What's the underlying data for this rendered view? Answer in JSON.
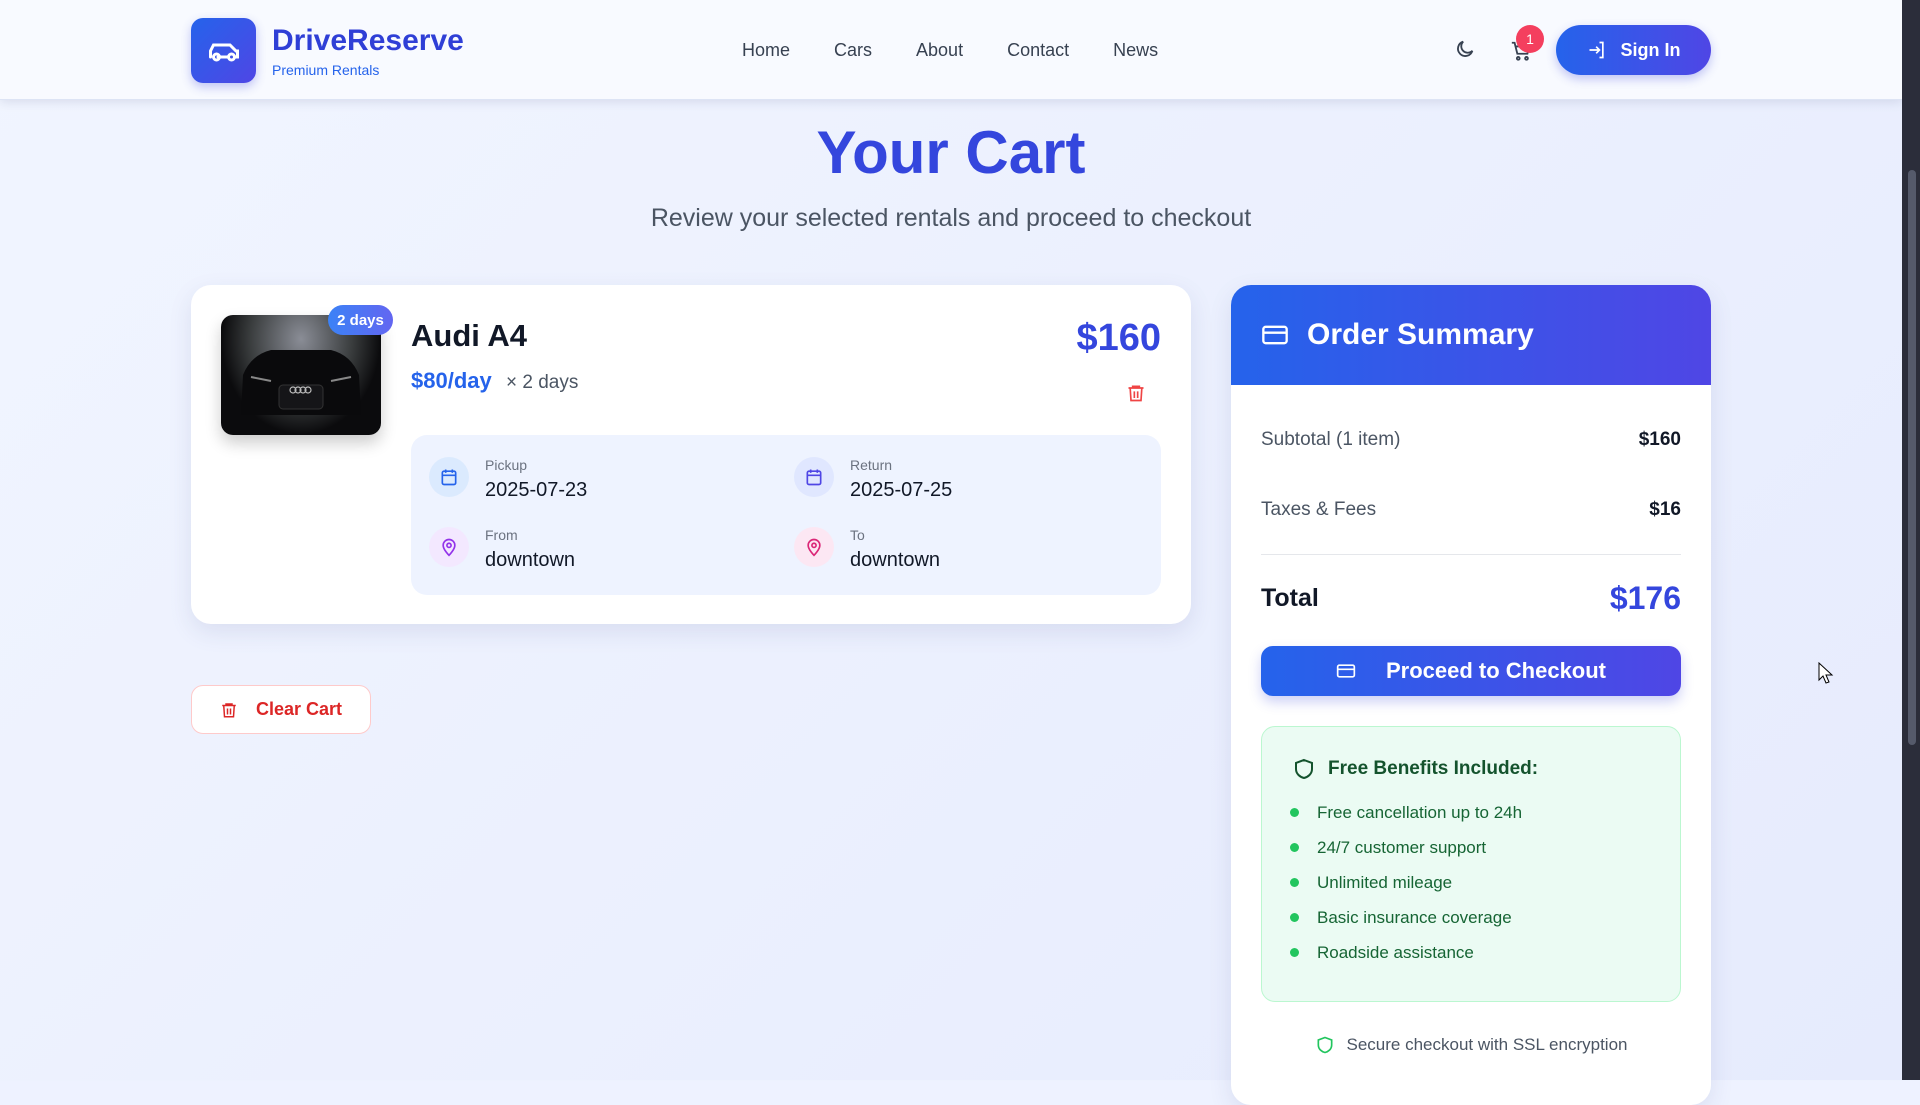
{
  "header": {
    "brand": "DriveReserve",
    "tagline": "Premium Rentals",
    "nav": [
      "Home",
      "Cars",
      "About",
      "Contact",
      "News"
    ],
    "cart_count": "1",
    "sign_in": "Sign In"
  },
  "page": {
    "title": "Your Cart",
    "subtitle": "Review your selected rentals and proceed to checkout"
  },
  "item": {
    "name": "Audi A4",
    "days_badge": "2 days",
    "rate": "$80/day",
    "multiplier": "×  2 days",
    "price": "$160",
    "pickup_label": "Pickup",
    "pickup": "2025-07-23",
    "return_label": "Return",
    "return": "2025-07-25",
    "from_label": "From",
    "from": "downtown",
    "to_label": "To",
    "to": "downtown"
  },
  "clear_cart": "Clear Cart",
  "summary": {
    "title": "Order Summary",
    "subtotal_label": "Subtotal (1 item)",
    "subtotal": "$160",
    "taxes_label": "Taxes & Fees",
    "taxes": "$16",
    "total_label": "Total",
    "total": "$176",
    "checkout": "Proceed to Checkout",
    "benefits_title": "Free Benefits Included:",
    "benefits": [
      "Free cancellation up to 24h",
      "24/7 customer support",
      "Unlimited mileage",
      "Basic insurance coverage",
      "Roadside assistance"
    ],
    "secure": "Secure checkout with SSL encryption"
  },
  "colors": {
    "primary": "#2563eb",
    "accent": "#4f46e5",
    "danger": "#dc2626",
    "success": "#22c55e"
  }
}
